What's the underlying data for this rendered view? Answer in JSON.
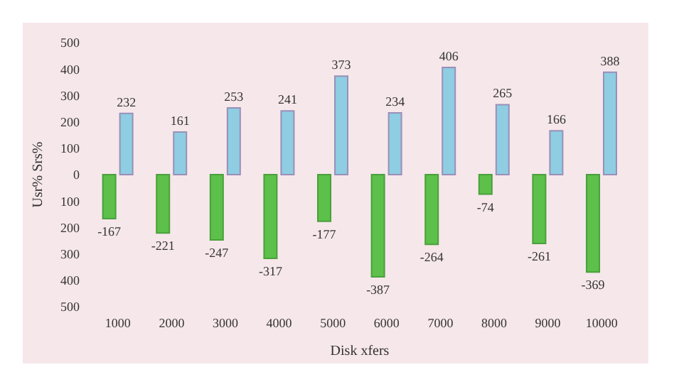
{
  "chart_data": {
    "type": "bar",
    "xlabel": "Disk xfers",
    "ylabel": "Usr% Srs%",
    "categories": [
      "1000",
      "2000",
      "3000",
      "4000",
      "5000",
      "6000",
      "7000",
      "8000",
      "9000",
      "10000"
    ],
    "series": [
      {
        "color": "#5cc04a",
        "values": [
          -167,
          -221,
          -247,
          -317,
          -177,
          -387,
          -264,
          -74,
          -261,
          -369
        ]
      },
      {
        "color": "#8ecde2",
        "values": [
          232,
          161,
          253,
          241,
          373,
          234,
          406,
          265,
          166,
          388
        ]
      }
    ],
    "ylim": [
      -500,
      500
    ],
    "yticks": [
      {
        "value": -500,
        "label": "500"
      },
      {
        "value": -400,
        "label": "400"
      },
      {
        "value": -300,
        "label": "300"
      },
      {
        "value": -200,
        "label": "200"
      },
      {
        "value": -100,
        "label": "100"
      },
      0,
      100,
      200,
      300,
      400,
      500
    ],
    "data_labels": true,
    "grid": false,
    "legend": false
  }
}
